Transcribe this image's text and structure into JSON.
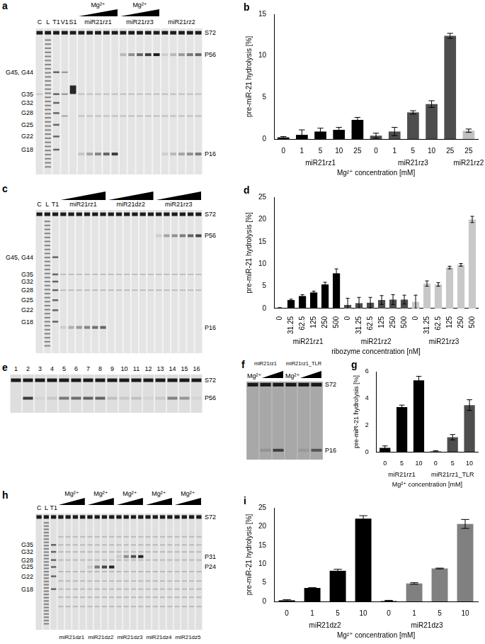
{
  "gels": [
    {
      "panel": "a",
      "lanes": [
        "C",
        "L",
        "T1",
        "V1",
        "S1"
      ],
      "groups": [
        {
          "name": "miR21rz1",
          "ramp_label": "Mg²⁺"
        },
        {
          "name": "miR21rz3",
          "ramp_label": "Mg²⁺"
        },
        {
          "name": "miR21rz2"
        }
      ],
      "left_labels": [
        "G45, G44",
        "G35",
        "G32",
        "G28",
        "G25",
        "G22",
        "G18"
      ],
      "right_labels": [
        "S72",
        "P56",
        "P16"
      ]
    },
    {
      "panel": "c",
      "lanes": [
        "C",
        "L",
        "T1"
      ],
      "groups": [
        {
          "name": "miR21rz1"
        },
        {
          "name": "miR21dz2"
        },
        {
          "name": "miR21rz3"
        }
      ],
      "left_labels": [
        "G45, G44",
        "G35",
        "G32",
        "G28",
        "G25",
        "G22",
        "G18"
      ],
      "right_labels": [
        "S72",
        "P56",
        "P16"
      ]
    },
    {
      "panel": "e",
      "lanes": [
        "1",
        "2",
        "3",
        "4",
        "5",
        "6",
        "7",
        "8",
        "9",
        "10",
        "11",
        "12",
        "13",
        "14",
        "15",
        "16"
      ],
      "right_labels": [
        "S72",
        "P56"
      ]
    },
    {
      "panel": "f",
      "groups": [
        {
          "name": "miR21rz1",
          "ramp_label": "Mg²⁺"
        },
        {
          "name": "miR21rz1_TLR",
          "ramp_label": "Mg²⁺"
        }
      ],
      "right_labels": [
        "S72",
        "P16"
      ]
    },
    {
      "panel": "h",
      "lanes": [
        "C",
        "L",
        "T1"
      ],
      "groups": [
        {
          "name": "miR21dz1",
          "ramp_label": "Mg²⁺"
        },
        {
          "name": "miR21dz2",
          "ramp_label": "Mg²⁺"
        },
        {
          "name": "miR21dz3",
          "ramp_label": "Mg²⁺"
        },
        {
          "name": "miR21dz4",
          "ramp_label": "Mg²⁺"
        },
        {
          "name": "miR21dz5",
          "ramp_label": "Mg²⁺"
        }
      ],
      "left_labels": [
        "G35",
        "G32",
        "G28",
        "G25",
        "G22",
        "G18"
      ],
      "right_labels": [
        "S72",
        "P31",
        "P24"
      ]
    }
  ],
  "chart_data": [
    {
      "type": "bar",
      "title": "b",
      "categories": [
        "0",
        "1",
        "5",
        "10",
        "25",
        "0",
        "1",
        "5",
        "10",
        "25",
        "25"
      ],
      "series": [
        {
          "name": "miR21rz1",
          "color": "#000000",
          "values": [
            0.2,
            0.5,
            0.9,
            1.1,
            2.3,
            null,
            null,
            null,
            null,
            null,
            null
          ],
          "errors": [
            0.1,
            0.6,
            0.4,
            0.3,
            0.3,
            null,
            null,
            null,
            null,
            null,
            null
          ]
        },
        {
          "name": "miR21rz3",
          "color": "#4d4d4d",
          "values": [
            null,
            null,
            null,
            null,
            null,
            0.4,
            0.9,
            3.2,
            4.2,
            12.4,
            null
          ],
          "errors": [
            null,
            null,
            null,
            null,
            null,
            0.3,
            0.5,
            0.2,
            0.4,
            0.3,
            null
          ]
        },
        {
          "name": "miR21rz2",
          "color": "#c0c0c0",
          "values": [
            null,
            null,
            null,
            null,
            null,
            null,
            null,
            null,
            null,
            null,
            1.0
          ],
          "errors": [
            null,
            null,
            null,
            null,
            null,
            null,
            null,
            null,
            null,
            null,
            0.2
          ]
        }
      ],
      "ylim": [
        0,
        15
      ],
      "yticks": [
        0,
        5,
        10,
        15
      ],
      "y_label": "pre-miR-21 hydrolysis [%]",
      "x_label": "Mg²⁺ concentration [mM]",
      "grid": false
    },
    {
      "type": "bar",
      "title": "d",
      "categories": [
        "0",
        "31.25",
        "62.5",
        "125",
        "250",
        "500",
        "0",
        "31.25",
        "62.5",
        "125",
        "250",
        "500",
        "0",
        "31.25",
        "62.5",
        "125",
        "250",
        "500"
      ],
      "series": [
        {
          "name": "miR21rz1",
          "color": "#000000",
          "values": [
            0.1,
            1.9,
            2.8,
            3.6,
            5.4,
            7.9,
            null,
            null,
            null,
            null,
            null,
            null,
            null,
            null,
            null,
            null,
            null,
            null
          ],
          "errors": [
            0.1,
            0.2,
            0.3,
            0.3,
            0.5,
            1.0,
            null,
            null,
            null,
            null,
            null,
            null,
            null,
            null,
            null,
            null,
            null,
            null
          ]
        },
        {
          "name": "miR21rz2",
          "color": "#4d4d4d",
          "values": [
            null,
            null,
            null,
            null,
            null,
            null,
            0.8,
            1.2,
            1.3,
            1.9,
            2.0,
            2.0,
            null,
            null,
            null,
            null,
            null,
            null
          ],
          "errors": [
            null,
            null,
            null,
            null,
            null,
            null,
            1.5,
            1.3,
            1.2,
            1.0,
            1.1,
            1.0,
            null,
            null,
            null,
            null,
            null,
            null
          ]
        },
        {
          "name": "miR21rz3",
          "color": "#c8c8c8",
          "values": [
            null,
            null,
            null,
            null,
            null,
            null,
            null,
            null,
            null,
            null,
            null,
            null,
            1.5,
            5.6,
            5.4,
            9.2,
            9.8,
            20.0
          ],
          "errors": [
            null,
            null,
            null,
            null,
            null,
            null,
            null,
            null,
            null,
            null,
            null,
            null,
            1.5,
            0.6,
            0.4,
            0.3,
            0.3,
            0.7
          ]
        }
      ],
      "ylim": [
        0,
        25
      ],
      "yticks": [
        0,
        5,
        10,
        15,
        20,
        25
      ],
      "y_label": "pre-miR-21 hydrolysis [%]",
      "x_label": "ribozyme concentration [nM]",
      "grid": false
    },
    {
      "type": "bar",
      "title": "g",
      "categories": [
        "0",
        "5",
        "10",
        "0",
        "5",
        "10"
      ],
      "series": [
        {
          "name": "miR21rz1",
          "color": "#000000",
          "values": [
            0.3,
            3.35,
            5.35,
            null,
            null,
            null
          ],
          "errors": [
            0.15,
            0.15,
            0.3,
            null,
            null,
            null
          ]
        },
        {
          "name": "miR21rz1_TLR",
          "color": "#4d4d4d",
          "values": [
            null,
            null,
            null,
            0.05,
            1.1,
            3.5
          ],
          "errors": [
            null,
            null,
            null,
            0.05,
            0.2,
            0.4
          ]
        }
      ],
      "ylim": [
        0,
        6
      ],
      "yticks": [
        0,
        2,
        4,
        6
      ],
      "y_label": "pre-miR-21 hydrolysis [%]",
      "x_label": "Mg²⁺ concentration [mM]",
      "grid": false
    },
    {
      "type": "bar",
      "title": "i",
      "categories": [
        "0",
        "1",
        "5",
        "10",
        "0",
        "1",
        "5",
        "10"
      ],
      "series": [
        {
          "name": "miR21dz2",
          "color": "#000000",
          "values": [
            0.3,
            3.6,
            8.2,
            22.1,
            null,
            null,
            null,
            null
          ],
          "errors": [
            0.2,
            0.1,
            0.4,
            0.8,
            null,
            null,
            null,
            null
          ]
        },
        {
          "name": "miR21dz3",
          "color": "#808080",
          "values": [
            null,
            null,
            null,
            null,
            0.2,
            4.8,
            8.8,
            20.7
          ],
          "errors": [
            null,
            null,
            null,
            null,
            0.1,
            0.2,
            0.1,
            1.2
          ]
        }
      ],
      "ylim": [
        0,
        25
      ],
      "yticks": [
        0,
        5,
        10,
        15,
        20,
        25
      ],
      "y_label": "pre-miR-21 hydrolysis [%]",
      "x_label": "Mg²⁺ concentration [mM]",
      "grid": false
    }
  ]
}
